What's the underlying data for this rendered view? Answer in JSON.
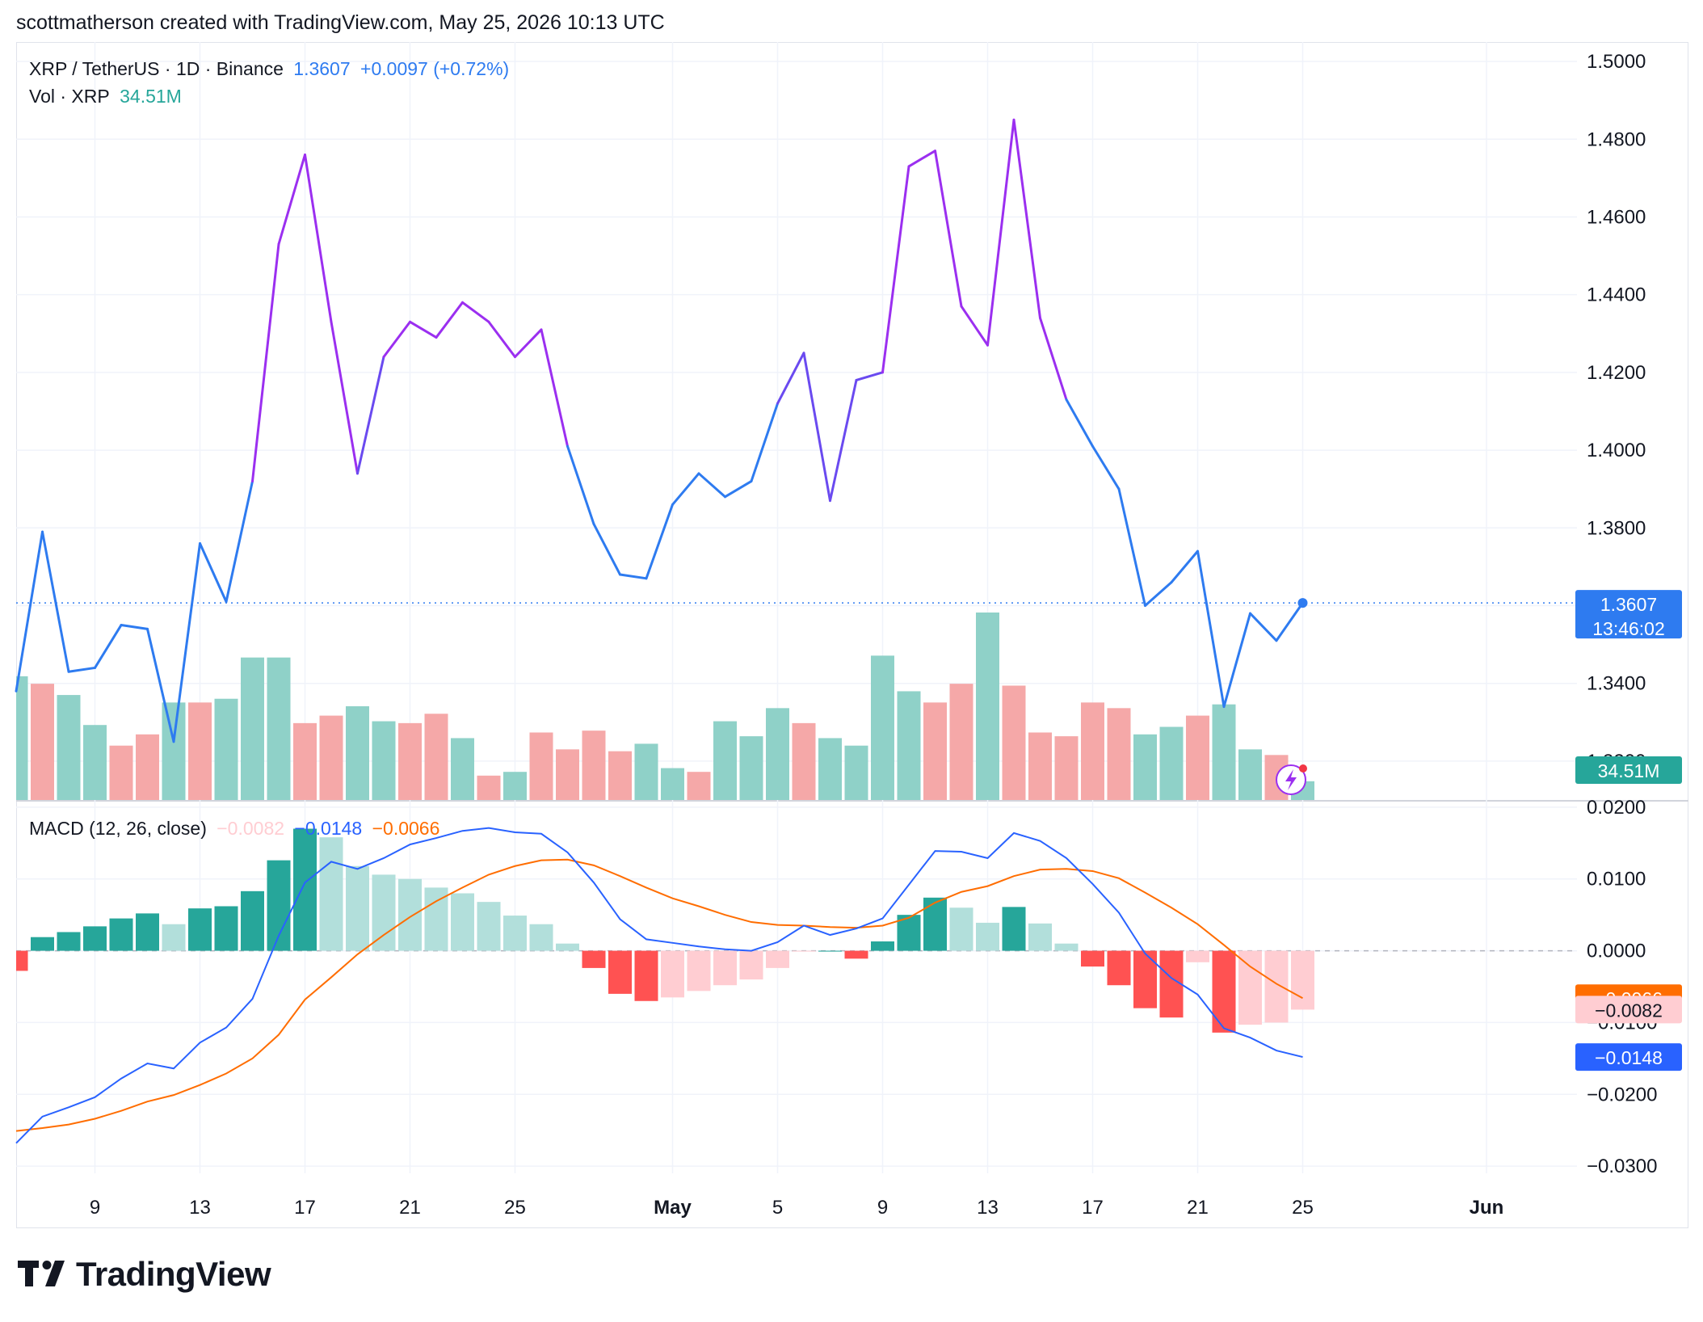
{
  "header": {
    "attribution": "scottmatherson created with TradingView.com, May 25, 2026 10:13 UTC"
  },
  "brand": {
    "name": "TradingView"
  },
  "colors": {
    "up": "#26a69a",
    "up_light": "#b2dfdb",
    "down": "#ff5252",
    "down_light": "#ffcdd2",
    "vol_up": "#8fd1c8",
    "vol_down": "#f5a8a8",
    "macd_line": "#2962ff",
    "signal_line": "#ff6d00",
    "price_line": "#2e7bf0",
    "price_peak": "#9b2ff0",
    "grid": "#f0f3fa",
    "text": "#131722"
  },
  "legend": {
    "symbol": "XRP / TetherUS · 1D · Binance",
    "last": "1.3607",
    "change": "+0.0097 (+0.72%)",
    "vol_label": "Vol · XRP",
    "vol_value": "34.51M",
    "macd_label": "MACD (12, 26, close)",
    "macd_hist": "−0.0082",
    "macd_value": "−0.0148",
    "macd_signal": "−0.0066"
  },
  "badges": {
    "price": "1.3607",
    "countdown": "13:46:02",
    "volume": "34.51M",
    "signal": "−0.0066",
    "hist": "−0.0082",
    "macd": "−0.0148"
  },
  "chart_data": [
    {
      "type": "line",
      "pane": "price",
      "title": "XRP / TetherUS · 1D · Binance",
      "ylim": [
        1.31,
        1.505
      ],
      "y_ticks": [
        "1.5000",
        "1.4800",
        "1.4600",
        "1.4400",
        "1.4200",
        "1.4000",
        "1.3800",
        "1.3600",
        "1.3400",
        "1.3200"
      ],
      "x_ticks": [
        "9",
        "13",
        "17",
        "21",
        "25",
        "May",
        "5",
        "9",
        "13",
        "17",
        "21",
        "25",
        "Jun"
      ],
      "x": [
        "Apr 6",
        "Apr 7",
        "Apr 8",
        "Apr 9",
        "Apr 10",
        "Apr 11",
        "Apr 12",
        "Apr 13",
        "Apr 14",
        "Apr 15",
        "Apr 16",
        "Apr 17",
        "Apr 18",
        "Apr 19",
        "Apr 20",
        "Apr 21",
        "Apr 22",
        "Apr 23",
        "Apr 24",
        "Apr 25",
        "Apr 26",
        "Apr 27",
        "Apr 28",
        "Apr 29",
        "Apr 30",
        "May 1",
        "May 2",
        "May 3",
        "May 4",
        "May 5",
        "May 6",
        "May 7",
        "May 8",
        "May 9",
        "May 10",
        "May 11",
        "May 12",
        "May 13",
        "May 14",
        "May 15",
        "May 16",
        "May 17",
        "May 18",
        "May 19",
        "May 20",
        "May 21",
        "May 22",
        "May 23",
        "May 24",
        "May 25"
      ],
      "series": [
        {
          "name": "XRP / TetherUS",
          "values": [
            1.338,
            1.379,
            1.343,
            1.344,
            1.355,
            1.354,
            1.325,
            1.376,
            1.361,
            1.392,
            1.453,
            1.476,
            1.433,
            1.394,
            1.424,
            1.433,
            1.429,
            1.438,
            1.433,
            1.424,
            1.431,
            1.401,
            1.381,
            1.368,
            1.367,
            1.386,
            1.394,
            1.388,
            1.392,
            1.412,
            1.425,
            1.387,
            1.418,
            1.42,
            1.473,
            1.477,
            1.437,
            1.427,
            1.485,
            1.434,
            1.413,
            1.401,
            1.39,
            1.36,
            1.366,
            1.374,
            1.334,
            1.358,
            1.351,
            1.3607
          ]
        }
      ]
    },
    {
      "type": "bar",
      "pane": "volume",
      "title": "Vol · XRP",
      "ylim": [
        0,
        5
      ],
      "x": [
        "Apr 6",
        "Apr 7",
        "Apr 8",
        "Apr 9",
        "Apr 10",
        "Apr 11",
        "Apr 12",
        "Apr 13",
        "Apr 14",
        "Apr 15",
        "Apr 16",
        "Apr 17",
        "Apr 18",
        "Apr 19",
        "Apr 20",
        "Apr 21",
        "Apr 22",
        "Apr 23",
        "Apr 24",
        "Apr 25",
        "Apr 26",
        "Apr 27",
        "Apr 28",
        "Apr 29",
        "Apr 30",
        "May 1",
        "May 2",
        "May 3",
        "May 4",
        "May 5",
        "May 6",
        "May 7",
        "May 8",
        "May 9",
        "May 10",
        "May 11",
        "May 12",
        "May 13",
        "May 14",
        "May 15",
        "May 16",
        "May 17",
        "May 18",
        "May 19",
        "May 20",
        "May 21",
        "May 22",
        "May 23",
        "May 24",
        "May 25"
      ],
      "values": [
        3.3,
        3.1,
        2.8,
        2.0,
        1.45,
        1.75,
        2.6,
        2.6,
        2.7,
        3.8,
        3.8,
        2.05,
        2.25,
        2.5,
        2.1,
        2.05,
        2.3,
        1.65,
        0.65,
        0.75,
        1.8,
        1.35,
        1.85,
        1.3,
        1.5,
        0.85,
        0.75,
        2.1,
        1.7,
        2.45,
        2.05,
        1.65,
        1.45,
        3.85,
        2.9,
        2.6,
        3.1,
        5.0,
        3.05,
        1.8,
        1.7,
        2.6,
        2.45,
        1.75,
        1.95,
        2.25,
        2.55,
        1.35,
        1.2,
        0.5
      ],
      "direction": [
        "up",
        "down",
        "up",
        "up",
        "down",
        "down",
        "up",
        "down",
        "up",
        "up",
        "up",
        "down",
        "down",
        "up",
        "up",
        "down",
        "down",
        "up",
        "down",
        "up",
        "down",
        "down",
        "down",
        "down",
        "up",
        "up",
        "down",
        "up",
        "up",
        "up",
        "down",
        "up",
        "up",
        "up",
        "up",
        "down",
        "down",
        "up",
        "down",
        "down",
        "down",
        "down",
        "down",
        "up",
        "up",
        "down",
        "up",
        "up",
        "down",
        "up"
      ]
    },
    {
      "type": "line",
      "pane": "macd",
      "title": "MACD (12, 26, close)",
      "ylim": [
        -0.031,
        0.021
      ],
      "y_ticks": [
        "0.0200",
        "0.0100",
        "0.0000",
        "−0.0100",
        "−0.0200",
        "−0.0300"
      ],
      "x": [
        "Apr 6",
        "Apr 7",
        "Apr 8",
        "Apr 9",
        "Apr 10",
        "Apr 11",
        "Apr 12",
        "Apr 13",
        "Apr 14",
        "Apr 15",
        "Apr 16",
        "Apr 17",
        "Apr 18",
        "Apr 19",
        "Apr 20",
        "Apr 21",
        "Apr 22",
        "Apr 23",
        "Apr 24",
        "Apr 25",
        "Apr 26",
        "Apr 27",
        "Apr 28",
        "Apr 29",
        "Apr 30",
        "May 1",
        "May 2",
        "May 3",
        "May 4",
        "May 5",
        "May 6",
        "May 7",
        "May 8",
        "May 9",
        "May 10",
        "May 11",
        "May 12",
        "May 13",
        "May 14",
        "May 15",
        "May 16",
        "May 17",
        "May 18",
        "May 19",
        "May 20",
        "May 21",
        "May 22",
        "May 23",
        "May 24",
        "May 25"
      ],
      "series": [
        {
          "name": "MACD",
          "values": [
            -0.0268,
            -0.0231,
            -0.0218,
            -0.0204,
            -0.0178,
            -0.0157,
            -0.0164,
            -0.0128,
            -0.0107,
            -0.0067,
            0.0021,
            0.0095,
            0.0124,
            0.0114,
            0.0129,
            0.0148,
            0.0157,
            0.0167,
            0.0171,
            0.0165,
            0.0163,
            0.0137,
            0.0095,
            0.0044,
            0.0016,
            0.0011,
            0.0006,
            0.0002,
            0.0,
            0.0012,
            0.0035,
            0.0022,
            0.0031,
            0.0045,
            0.0092,
            0.0139,
            0.0138,
            0.0129,
            0.0164,
            0.0153,
            0.0129,
            0.0093,
            0.0053,
            -0.0004,
            -0.0038,
            -0.0061,
            -0.0108,
            -0.0121,
            -0.0139,
            -0.0148
          ]
        },
        {
          "name": "Signal",
          "values": [
            -0.0251,
            -0.0247,
            -0.0242,
            -0.0234,
            -0.0223,
            -0.021,
            -0.0201,
            -0.0187,
            -0.0171,
            -0.015,
            -0.0117,
            -0.0068,
            -0.0037,
            -0.0005,
            0.0022,
            0.0047,
            0.0069,
            0.0088,
            0.0106,
            0.0118,
            0.0126,
            0.0127,
            0.0119,
            0.0104,
            0.0088,
            0.0073,
            0.0062,
            0.005,
            0.004,
            0.0036,
            0.0035,
            0.0033,
            0.0032,
            0.0035,
            0.0046,
            0.0067,
            0.0082,
            0.009,
            0.0104,
            0.0113,
            0.0114,
            0.0111,
            0.0101,
            0.0081,
            0.006,
            0.0037,
            0.0008,
            -0.0022,
            -0.0046,
            -0.0066
          ]
        },
        {
          "name": "Histogram",
          "values": [
            -0.0028,
            0.0019,
            0.0026,
            0.0034,
            0.0045,
            0.0052,
            0.0037,
            0.0059,
            0.0062,
            0.0083,
            0.0126,
            0.017,
            0.0158,
            0.0118,
            0.0106,
            0.01,
            0.0088,
            0.008,
            0.0068,
            0.0049,
            0.0037,
            0.001,
            -0.0024,
            -0.006,
            -0.007,
            -0.0065,
            -0.0056,
            -0.0048,
            -0.004,
            -0.0024,
            -0.0001,
            0.0,
            -0.0011,
            0.0013,
            0.005,
            0.0074,
            0.006,
            0.0039,
            0.0061,
            0.0038,
            0.001,
            -0.0022,
            -0.0048,
            -0.008,
            -0.0093,
            -0.0016,
            -0.0114,
            -0.0103,
            -0.01,
            -0.0082
          ]
        }
      ]
    }
  ]
}
